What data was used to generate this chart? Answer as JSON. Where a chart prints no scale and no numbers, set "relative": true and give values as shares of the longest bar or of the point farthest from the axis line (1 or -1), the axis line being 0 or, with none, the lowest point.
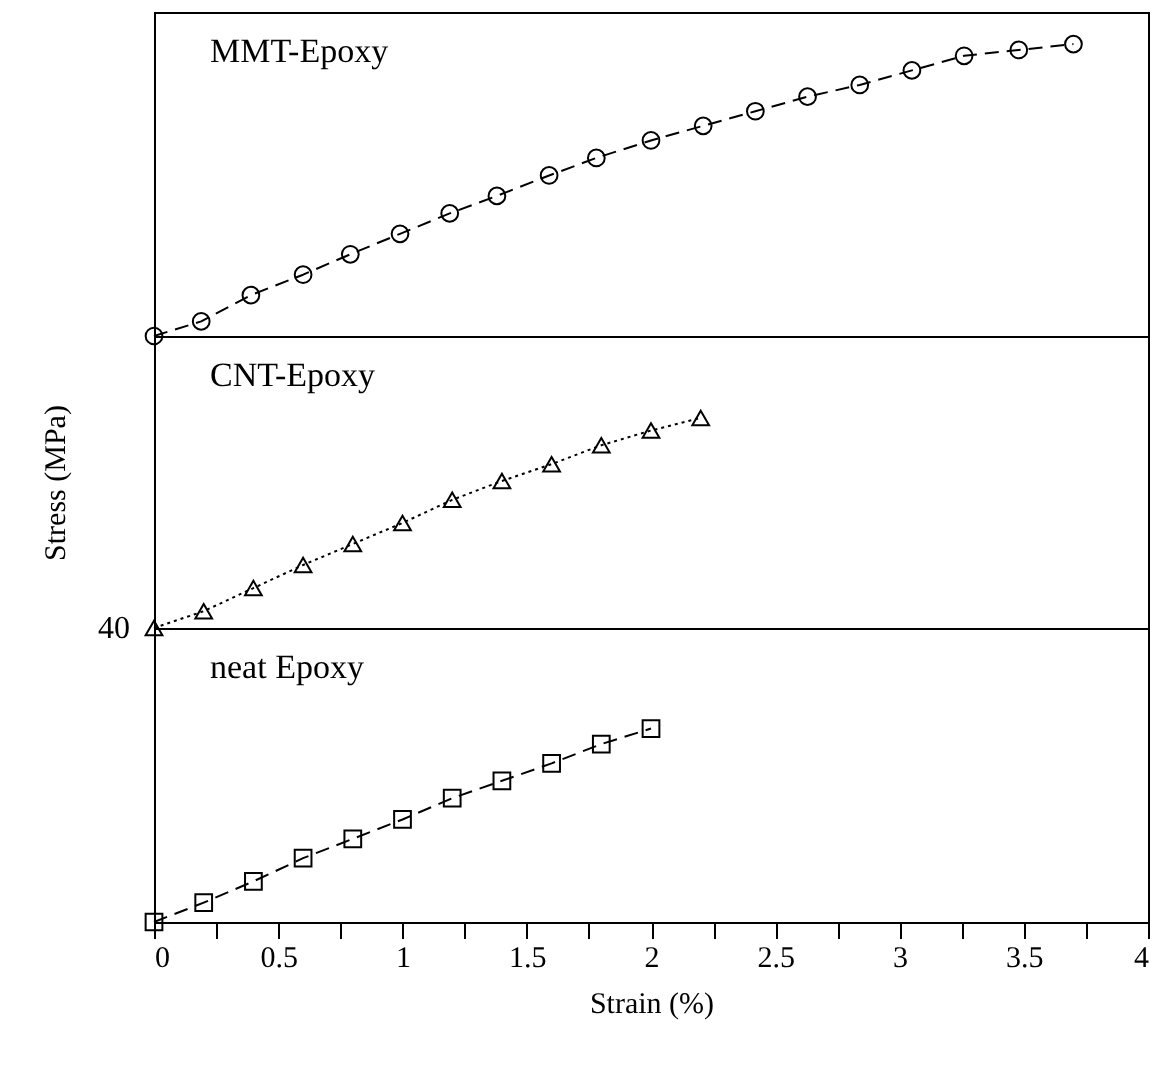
{
  "chart_data": [
    {
      "type": "line",
      "relative": true,
      "marker": "circle",
      "line_style": "dashed",
      "tick_labels": false,
      "xlim": [
        0,
        4
      ],
      "x": [
        0,
        0.19,
        0.39,
        0.6,
        0.79,
        0.99,
        1.19,
        1.38,
        1.59,
        1.78,
        2.0,
        2.21,
        2.42,
        2.63,
        2.84,
        3.05,
        3.26,
        3.48,
        3.7
      ],
      "series": [
        {
          "name": "MMT-Epoxy",
          "color": "#000000",
          "values": [
            0,
            0.05,
            0.14,
            0.21,
            0.28,
            0.35,
            0.42,
            0.48,
            0.55,
            0.61,
            0.67,
            0.72,
            0.77,
            0.82,
            0.86,
            0.91,
            0.96,
            0.98,
            1
          ]
        }
      ]
    },
    {
      "type": "line",
      "relative": true,
      "marker": "triangle",
      "line_style": "dotted",
      "tick_labels": false,
      "xlim": [
        0,
        4
      ],
      "ylabel": "Stress (MPa)",
      "x": [
        0,
        0.2,
        0.4,
        0.6,
        0.8,
        1.0,
        1.2,
        1.4,
        1.6,
        1.8,
        2.0,
        2.2
      ],
      "series": [
        {
          "name": "CNT-Epoxy",
          "color": "#000000",
          "values": [
            0,
            0.08,
            0.19,
            0.3,
            0.4,
            0.5,
            0.61,
            0.7,
            0.78,
            0.87,
            0.94,
            1
          ]
        }
      ]
    },
    {
      "type": "line",
      "relative": true,
      "marker": "square",
      "line_style": "dashed",
      "tick_labels": "x",
      "xlim": [
        0,
        4
      ],
      "xlabel": "Strain (%)",
      "annotations": [
        "40"
      ],
      "xticks": [
        0,
        {
          "value": 0.25,
          "label": null
        },
        0.5,
        {
          "value": 0.75,
          "label": null
        },
        1,
        {
          "value": 1.25,
          "label": null
        },
        1.5,
        {
          "value": 1.75,
          "label": null
        },
        2,
        {
          "value": 2.25,
          "label": null
        },
        2.5,
        {
          "value": 2.75,
          "label": null
        },
        3,
        {
          "value": 3.25,
          "label": null
        },
        3.5,
        {
          "value": 3.75,
          "label": null
        },
        4
      ],
      "x": [
        0,
        0.2,
        0.4,
        0.6,
        0.8,
        1.0,
        1.2,
        1.4,
        1.6,
        1.8,
        2.0
      ],
      "series": [
        {
          "name": "neat Epoxy",
          "color": "#000000",
          "values": [
            0,
            0.1,
            0.21,
            0.33,
            0.43,
            0.53,
            0.64,
            0.73,
            0.82,
            0.92,
            1
          ]
        }
      ]
    }
  ]
}
